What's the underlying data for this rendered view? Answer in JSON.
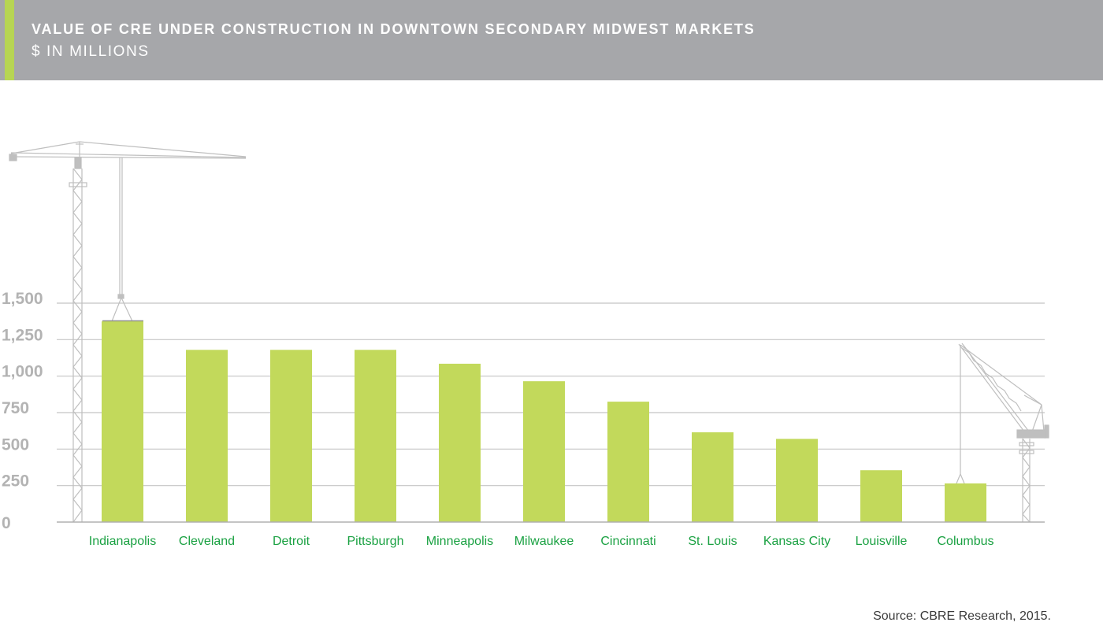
{
  "header": {
    "title": "VALUE OF CRE UNDER CONSTRUCTION IN DOWNTOWN SECONDARY MIDWEST MARKETS",
    "subtitle": "$ IN MILLIONS"
  },
  "source": "Source: CBRE Research, 2015.",
  "colors": {
    "bar": "#c2d95b",
    "label": "#1aa142",
    "grid": "#c4c4c4",
    "tick": "#b3b3b3",
    "header_bg": "#a6a7aa",
    "accent": "#b7d553",
    "crane": "#bfbfbf"
  },
  "icons": [
    "tower-crane-left-icon",
    "luffing-crane-right-icon"
  ],
  "chart_data": {
    "type": "bar",
    "title": "VALUE OF CRE UNDER CONSTRUCTION IN DOWNTOWN SECONDARY MIDWEST MARKETS",
    "subtitle": "$ IN MILLIONS",
    "categories": [
      "Indianapolis",
      "Cleveland",
      "Detroit",
      "Pittsburgh",
      "Minneapolis",
      "Milwaukee",
      "Cincinnati",
      "St. Louis",
      "Kansas City",
      "Louisville",
      "Columbus"
    ],
    "values": [
      1375,
      1180,
      1180,
      1180,
      1085,
      965,
      825,
      615,
      570,
      355,
      265
    ],
    "ylim": [
      0,
      1500
    ],
    "yticks": [
      0,
      250,
      500,
      750,
      1000,
      1250,
      1500
    ],
    "ytick_labels": [
      "0",
      "250",
      "500",
      "750",
      "1,000",
      "1,250",
      "1,500"
    ],
    "xlabel": "",
    "ylabel": "",
    "grid": true,
    "legend": "none"
  }
}
